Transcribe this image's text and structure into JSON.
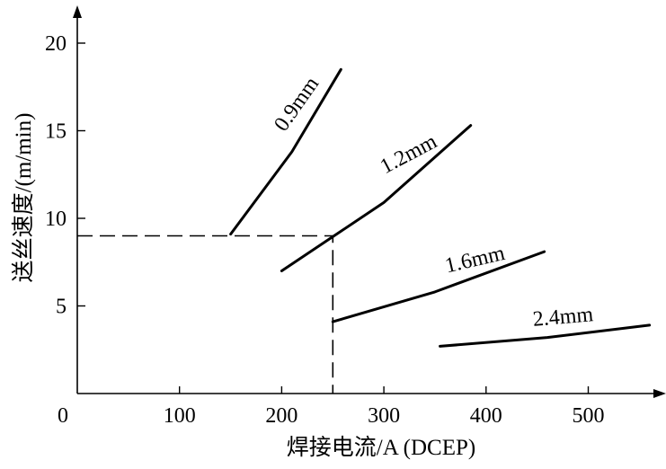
{
  "chart_data": {
    "type": "line",
    "xlabel": "焊接电流/A (DCEP)",
    "ylabel": "送丝速度/(m/min)",
    "xlim": [
      0,
      560
    ],
    "ylim": [
      0,
      21
    ],
    "xticks": [
      0,
      100,
      200,
      300,
      400,
      500
    ],
    "yticks": [
      5,
      10,
      15,
      20
    ],
    "xtick_labels": [
      "0",
      "100",
      "200",
      "300",
      "400",
      "500"
    ],
    "ytick_labels": [
      "5",
      "10",
      "15",
      "20"
    ],
    "grid": false,
    "series": [
      {
        "name": "0.9mm",
        "points": [
          [
            150,
            9.1
          ],
          [
            210,
            13.8
          ],
          [
            258,
            18.5
          ]
        ]
      },
      {
        "name": "1.2mm",
        "points": [
          [
            200,
            7.0
          ],
          [
            300,
            10.9
          ],
          [
            385,
            15.3
          ]
        ]
      },
      {
        "name": "1.6mm",
        "points": [
          [
            250,
            4.1
          ],
          [
            350,
            5.8
          ],
          [
            457,
            8.1
          ]
        ]
      },
      {
        "name": "2.4mm",
        "points": [
          [
            355,
            2.7
          ],
          [
            460,
            3.2
          ],
          [
            560,
            3.9
          ]
        ]
      }
    ],
    "reference_lines": [
      {
        "style": "dashed",
        "points": [
          [
            0,
            9.0
          ],
          [
            250,
            9.0
          ],
          [
            250,
            0
          ]
        ]
      }
    ]
  }
}
